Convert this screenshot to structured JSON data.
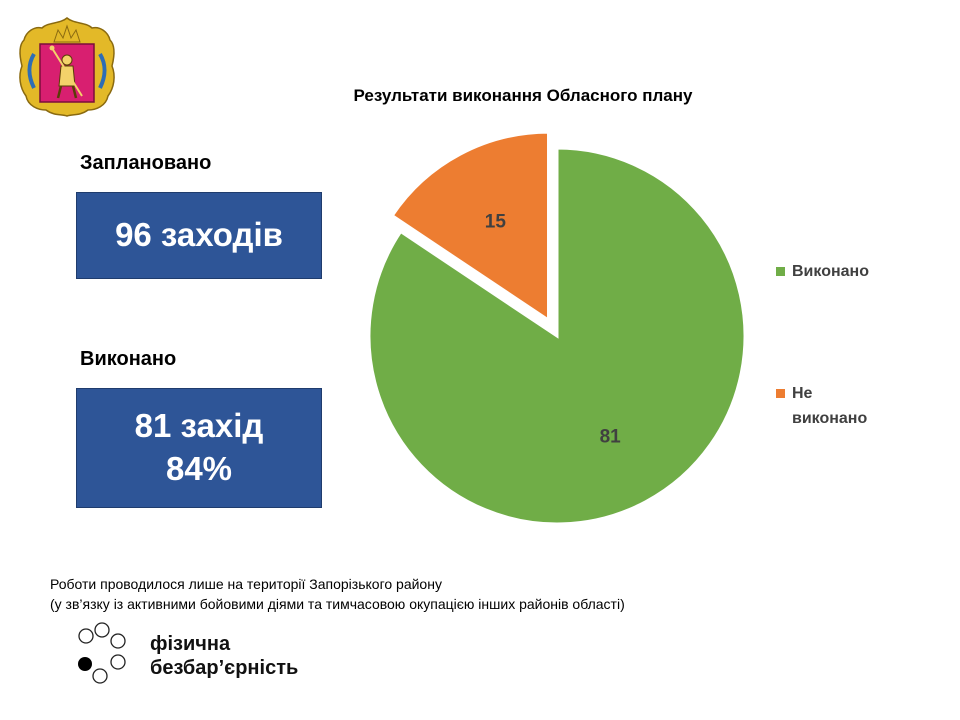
{
  "header": {
    "logo_icon": "zaporizhzhia-coat-of-arms-icon"
  },
  "stats": {
    "planned_label": "Заплановано",
    "planned_value": "96 заходів",
    "done_label": "Виконано",
    "done_value": "81 захід",
    "done_percent": "84%"
  },
  "chart_data": {
    "type": "pie",
    "title": "Результати виконання Обласного плану",
    "slices": [
      {
        "label": "Виконано",
        "value": 81,
        "color": "#70ad47"
      },
      {
        "label": "Не виконано",
        "value": 15,
        "color": "#ed7d31"
      }
    ],
    "data_labels": [
      "81",
      "15"
    ],
    "legend_position": "right"
  },
  "footnote": {
    "line1": "Роботи проводилося лише на території  Запорізького району",
    "line2": "(у зв’язку із активними бойовими діями та тимчасовою окупацією інших районів області)"
  },
  "brand": {
    "icon": "circles-logo-icon",
    "line1": "фізична",
    "line2": "безбар’єрність"
  }
}
